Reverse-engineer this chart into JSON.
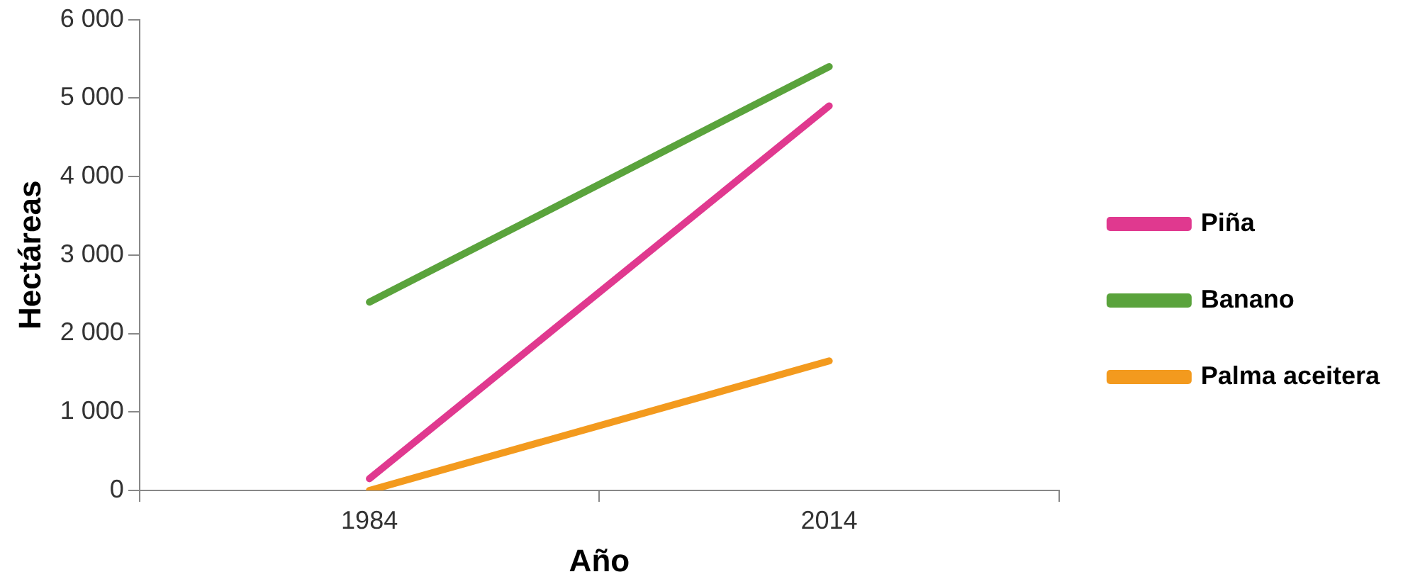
{
  "chart_data": {
    "type": "line",
    "xlabel": "Año",
    "ylabel": "Hectáreas",
    "categories": [
      "1984",
      "2014"
    ],
    "series": [
      {
        "name": "Piña",
        "color": "#e0398f",
        "values": [
          150,
          4900
        ]
      },
      {
        "name": "Banano",
        "color": "#5aa33c",
        "values": [
          2400,
          5400
        ]
      },
      {
        "name": "Palma aceitera",
        "color": "#f39a1e",
        "values": [
          0,
          1650
        ]
      }
    ],
    "ylim": [
      0,
      6000
    ],
    "yticks": [
      {
        "value": 0,
        "label": "0"
      },
      {
        "value": 1000,
        "label": "1 000"
      },
      {
        "value": 2000,
        "label": "2 000"
      },
      {
        "value": 3000,
        "label": "3 000"
      },
      {
        "value": 4000,
        "label": "4 000"
      },
      {
        "value": 5000,
        "label": "5 000"
      },
      {
        "value": 6000,
        "label": "6 000"
      }
    ],
    "grid": false,
    "legend": "right",
    "marker": "none",
    "line_style": "solid"
  }
}
